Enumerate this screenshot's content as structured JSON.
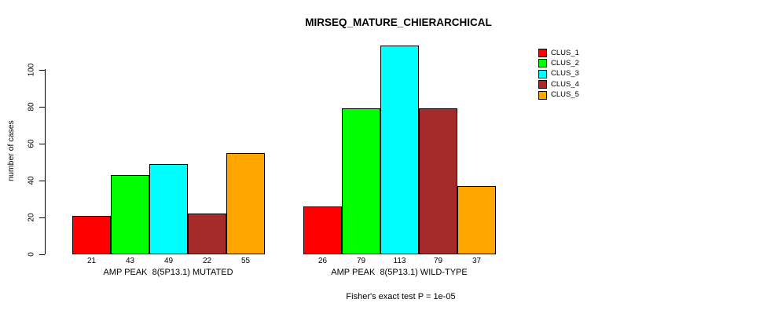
{
  "title": "MIRSEQ_MATURE_CHIERARCHICAL",
  "caption": "Fisher's exact test P = 1e-05",
  "legend": {
    "items": [
      {
        "label": "CLUS_1",
        "color": "#FF0000"
      },
      {
        "label": "CLUS_2",
        "color": "#00FF00"
      },
      {
        "label": "CLUS_3",
        "color": "#00FFFF"
      },
      {
        "label": "CLUS_4",
        "color": "#A52A2A"
      },
      {
        "label": "CLUS_5",
        "color": "#FFA500"
      }
    ],
    "position": "top-right"
  },
  "chart_data": {
    "type": "bar",
    "title": "MIRSEQ_MATURE_CHIERARCHICAL",
    "xlabel": "",
    "ylabel": "number of cases",
    "yticks": [
      0,
      20,
      40,
      60,
      80,
      100
    ],
    "ylim": [
      0,
      117
    ],
    "grid": false,
    "legend_position": "top-right",
    "series_colors": [
      "#FF0000",
      "#00FF00",
      "#00FFFF",
      "#A52A2A",
      "#FFA500"
    ],
    "series_names": [
      "CLUS_1",
      "CLUS_2",
      "CLUS_3",
      "CLUS_4",
      "CLUS_5"
    ],
    "groups": [
      {
        "label": "AMP PEAK  8(5P13.1) MUTATED",
        "values": [
          21,
          43,
          49,
          22,
          55
        ]
      },
      {
        "label": "AMP PEAK  8(5P13.1) WILD-TYPE",
        "values": [
          26,
          79,
          113,
          79,
          37
        ]
      }
    ],
    "annotation": "Fisher's exact test P = 1e-05"
  }
}
